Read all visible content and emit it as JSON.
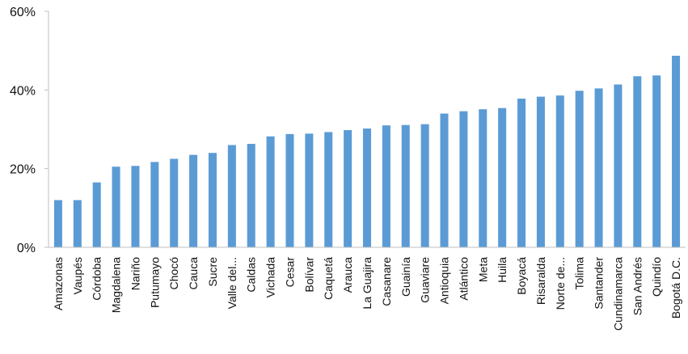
{
  "chart_data": {
    "type": "bar",
    "title": "",
    "xlabel": "",
    "ylabel": "",
    "ylim": [
      0,
      60
    ],
    "y_ticks": [
      0,
      20,
      40,
      60
    ],
    "y_tick_labels": [
      "0%",
      "20%",
      "40%",
      "60%"
    ],
    "grid": false,
    "legend": "none",
    "bar_color": "#5b9bd5",
    "categories": [
      "Amazonas",
      "Vaupés",
      "Córdoba",
      "Magdalena",
      "Nariño",
      "Putumayo",
      "Chocó",
      "Cauca",
      "Sucre",
      "Valle del...",
      "Caldas",
      "Vichada",
      "Cesar",
      "Bolívar",
      "Caquetá",
      "Arauca",
      "La Guajira",
      "Casanare",
      "Guainía",
      "Guaviare",
      "Antioquia",
      "Atlántico",
      "Meta",
      "Huila",
      "Boyacá",
      "Risaralda",
      "Norte de...",
      "Tolima",
      "Santander",
      "Cundinamarca",
      "San Andrés",
      "Quindío",
      "Bogotá D.C."
    ],
    "values": [
      12.0,
      12.0,
      16.5,
      20.5,
      20.7,
      21.7,
      22.5,
      23.5,
      24.0,
      26.0,
      26.3,
      28.2,
      28.8,
      28.9,
      29.3,
      29.8,
      30.2,
      31.0,
      31.1,
      31.3,
      34.0,
      34.6,
      35.1,
      35.4,
      37.8,
      38.3,
      38.6,
      39.8,
      40.4,
      41.4,
      43.5,
      43.7,
      48.7
    ]
  }
}
